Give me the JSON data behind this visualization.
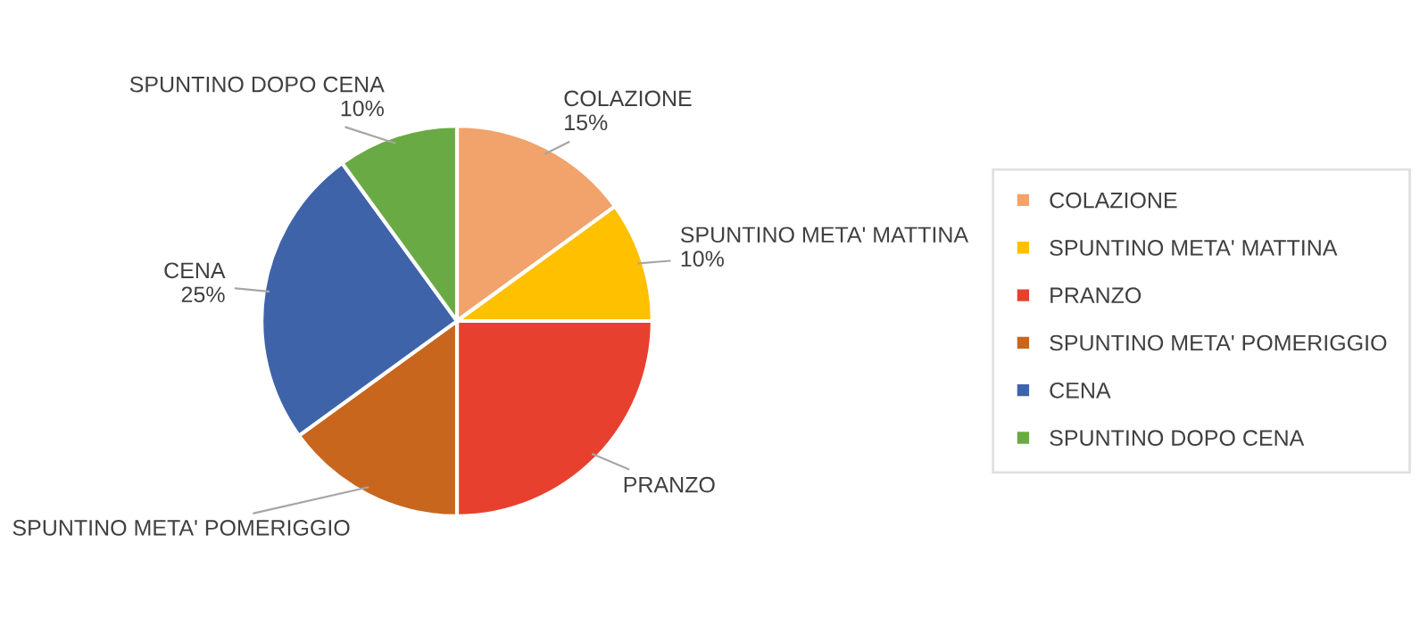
{
  "chart_data": {
    "type": "pie",
    "categories": [
      "COLAZIONE",
      "SPUNTINO META' MATTINA",
      "PRANZO",
      "SPUNTINO META' POMERIGGIO",
      "CENA",
      "SPUNTINO DOPO CENA"
    ],
    "values": [
      15,
      10,
      25,
      15,
      25,
      10
    ],
    "colors": [
      "#f2a26b",
      "#ffc000",
      "#e8402e",
      "#c8661e",
      "#3f63a8",
      "#6aaa45"
    ],
    "value_labels": [
      "15%",
      "10%",
      null,
      null,
      "25%",
      "10%"
    ],
    "legend": "right"
  }
}
